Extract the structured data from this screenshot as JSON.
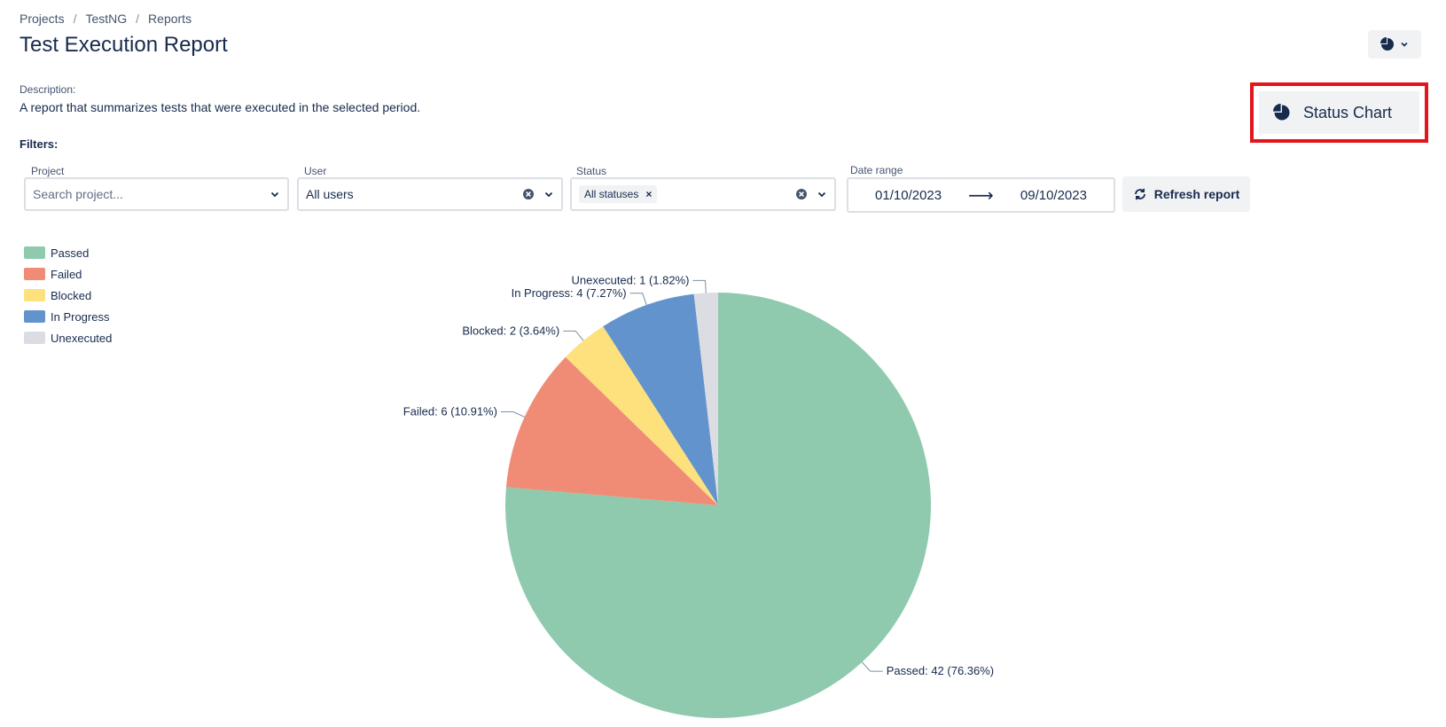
{
  "breadcrumb": {
    "items": [
      "Projects",
      "TestNG",
      "Reports"
    ],
    "separator": "/"
  },
  "page": {
    "title": "Test Execution Report",
    "description_label": "Description:",
    "description": "A report that summarizes tests that were executed in the selected period.",
    "filters_label": "Filters:"
  },
  "header": {
    "chart_toggle_icon": "pie-chart-icon",
    "chevron_icon": "chevron-down-icon"
  },
  "dropdown": {
    "item_label": "Status Chart",
    "item_icon": "pie-chart-icon",
    "highlight_color": "#e3151d"
  },
  "filters": {
    "project": {
      "label": "Project",
      "placeholder": "Search project..."
    },
    "user": {
      "label": "User",
      "value": "All users"
    },
    "status": {
      "label": "Status",
      "chip": "All statuses",
      "chip_remove": "×"
    },
    "date_range": {
      "label": "Date range",
      "start": "01/10/2023",
      "end": "09/10/2023",
      "arrow": "⟶"
    },
    "refresh_label": "Refresh report"
  },
  "chart_data": {
    "type": "pie",
    "title": "",
    "categories": [
      "Passed",
      "Failed",
      "Blocked",
      "In Progress",
      "Unexecuted"
    ],
    "values": [
      42,
      6,
      2,
      4,
      1
    ],
    "percentages": [
      76.36,
      10.91,
      3.64,
      7.27,
      1.82
    ],
    "slice_labels": [
      "Passed: 42 (76.36%)",
      "Failed: 6 (10.91%)",
      "Blocked: 2 (3.64%)",
      "In Progress: 4 (7.27%)",
      "Unexecuted: 1 (1.82%)"
    ],
    "colors": [
      "#8fcaaf",
      "#f08c76",
      "#fde17d",
      "#6393cd",
      "#dcdde2"
    ],
    "legend_position": "top-left"
  }
}
